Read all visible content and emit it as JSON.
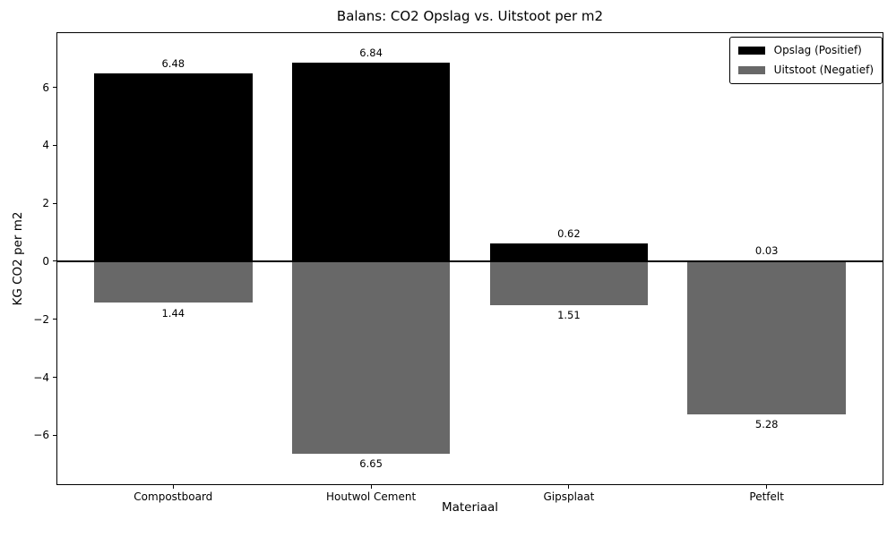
{
  "figure": {
    "title": "Balans: CO2 Opslag vs. Uitstoot per m2",
    "xlabel": "Materiaal",
    "ylabel": "KG CO2 per m2"
  },
  "chart_data": {
    "type": "bar",
    "title": "Balans: CO2 Opslag vs. Uitstoot per m2",
    "xlabel": "Materiaal",
    "ylabel": "KG CO2 per m2",
    "categories": [
      "Compostboard",
      "Houtwol Cement",
      "Gipsplaat",
      "Petfelt"
    ],
    "series": [
      {
        "name": "Opslag (Positief)",
        "color": "#000000",
        "values": [
          6.48,
          6.84,
          0.62,
          0.03
        ],
        "value_labels": [
          "6.48",
          "6.84",
          "0.62",
          "0.03"
        ]
      },
      {
        "name": "Uitstoot (Negatief)",
        "color": "#686868",
        "values": [
          -1.44,
          -6.65,
          -1.51,
          -5.28
        ],
        "value_labels": [
          "1.44",
          "6.65",
          "1.51",
          "5.28"
        ]
      }
    ],
    "yticks": [
      -6,
      -4,
      -2,
      0,
      2,
      4,
      6
    ],
    "ytick_labels": [
      "−6",
      "−4",
      "−2",
      "0",
      "2",
      "4",
      "6"
    ],
    "ylim": [
      -7.72,
      7.9
    ],
    "bar_width_fraction": 0.8,
    "zero_line": true,
    "grid": false,
    "legend_position": "upper right",
    "background_color": "#ffffff",
    "text_color": "#000000"
  }
}
